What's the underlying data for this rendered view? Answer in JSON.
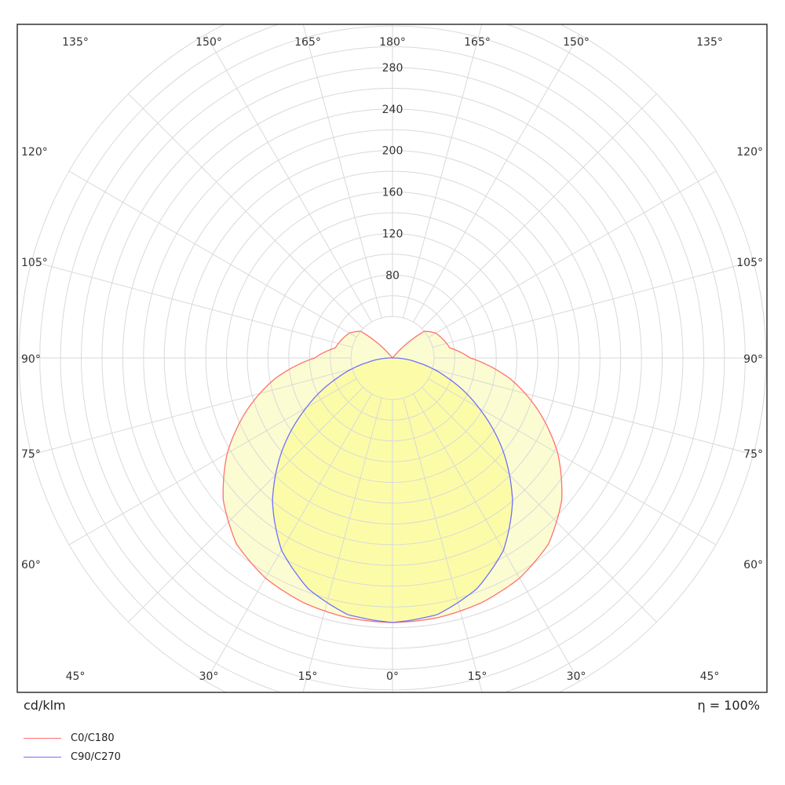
{
  "chart_data": {
    "type": "polar",
    "unit_label": "cd/klm",
    "efficiency_label": "η = 100%",
    "radial_ticks": [
      80,
      120,
      160,
      200,
      240,
      280
    ],
    "radial_max": 360,
    "angle_labels_top": [
      "135°",
      "150°",
      "165°",
      "180°",
      "165°",
      "150°",
      "135°"
    ],
    "angle_labels_side": [
      "120°",
      "105°",
      "90°",
      "75°",
      "60°"
    ],
    "angle_labels_bottom": [
      "45°",
      "30°",
      "15°",
      "0°",
      "15°",
      "30°",
      "45°"
    ],
    "colors": {
      "c0_line": "#ff7070",
      "c0_fill": "#fcfcd2",
      "c90_line": "#7070ff",
      "c90_fill": "#fcfca8",
      "grid": "#d9d9d9",
      "frame": "#333333"
    },
    "series": [
      {
        "name": "C0/C180",
        "gamma": [
          0,
          10,
          20,
          30,
          40,
          50,
          60,
          70,
          80,
          90,
          100,
          110,
          120,
          130,
          140,
          150,
          160,
          170,
          180
        ],
        "values": [
          255,
          254,
          251,
          245,
          234,
          213,
          184,
          150,
          115,
          75,
          56,
          52,
          48,
          40,
          0,
          0,
          0,
          0,
          0
        ]
      },
      {
        "name": "C90/C270",
        "gamma": [
          0,
          10,
          20,
          30,
          40,
          50,
          60,
          70,
          80,
          90,
          100,
          110,
          120,
          130,
          140,
          150,
          160,
          170,
          180
        ],
        "values": [
          255,
          251,
          237,
          214,
          180,
          139,
          96,
          57,
          24,
          2,
          0,
          0,
          0,
          0,
          0,
          0,
          0,
          0,
          0
        ]
      }
    ]
  }
}
